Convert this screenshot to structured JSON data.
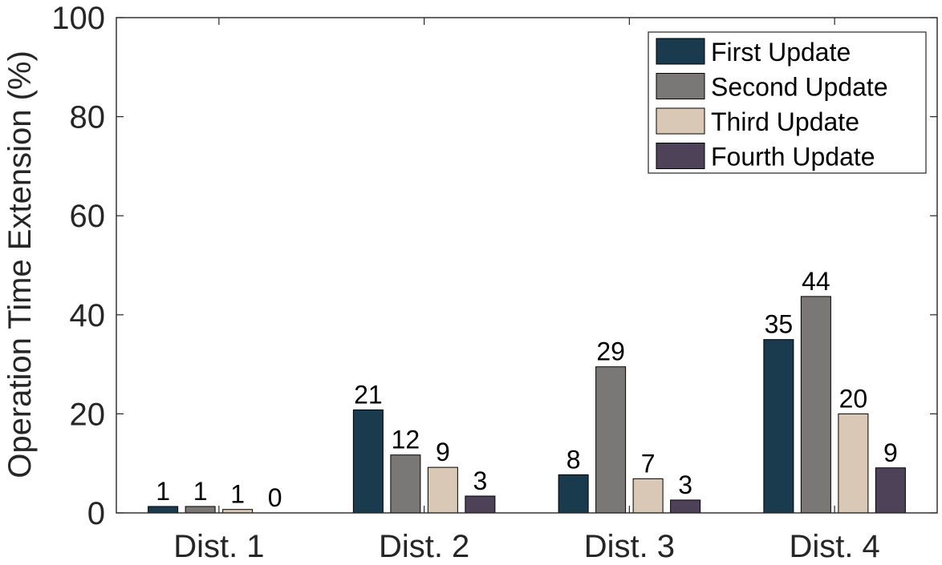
{
  "chart_data": {
    "type": "bar",
    "categories": [
      "Dist. 1",
      "Dist. 2",
      "Dist. 3",
      "Dist. 4"
    ],
    "series": [
      {
        "name": "First Update",
        "color": "#1a3a4d",
        "values": [
          1.3,
          20.8,
          7.7,
          35.0
        ],
        "labels": [
          "1",
          "21",
          "8",
          "35"
        ]
      },
      {
        "name": "Second Update",
        "color": "#7a7876",
        "values": [
          1.3,
          11.7,
          29.5,
          43.7
        ],
        "labels": [
          "1",
          "12",
          "29",
          "44"
        ]
      },
      {
        "name": "Third Update",
        "color": "#d9c8b6",
        "values": [
          0.7,
          9.2,
          6.9,
          20.0
        ],
        "labels": [
          "1",
          "9",
          "7",
          "20"
        ]
      },
      {
        "name": "Fourth Update",
        "color": "#4d4257",
        "values": [
          0.0,
          3.4,
          2.6,
          9.1
        ],
        "labels": [
          "0",
          "3",
          "3",
          "9"
        ]
      }
    ],
    "title": "",
    "xlabel": "",
    "ylabel": "Operation Time Extension (%)",
    "ylim": [
      0,
      100
    ],
    "yticks": [
      "0",
      "20",
      "40",
      "60",
      "80",
      "100"
    ],
    "grid": false,
    "legend_position": "top-right"
  }
}
